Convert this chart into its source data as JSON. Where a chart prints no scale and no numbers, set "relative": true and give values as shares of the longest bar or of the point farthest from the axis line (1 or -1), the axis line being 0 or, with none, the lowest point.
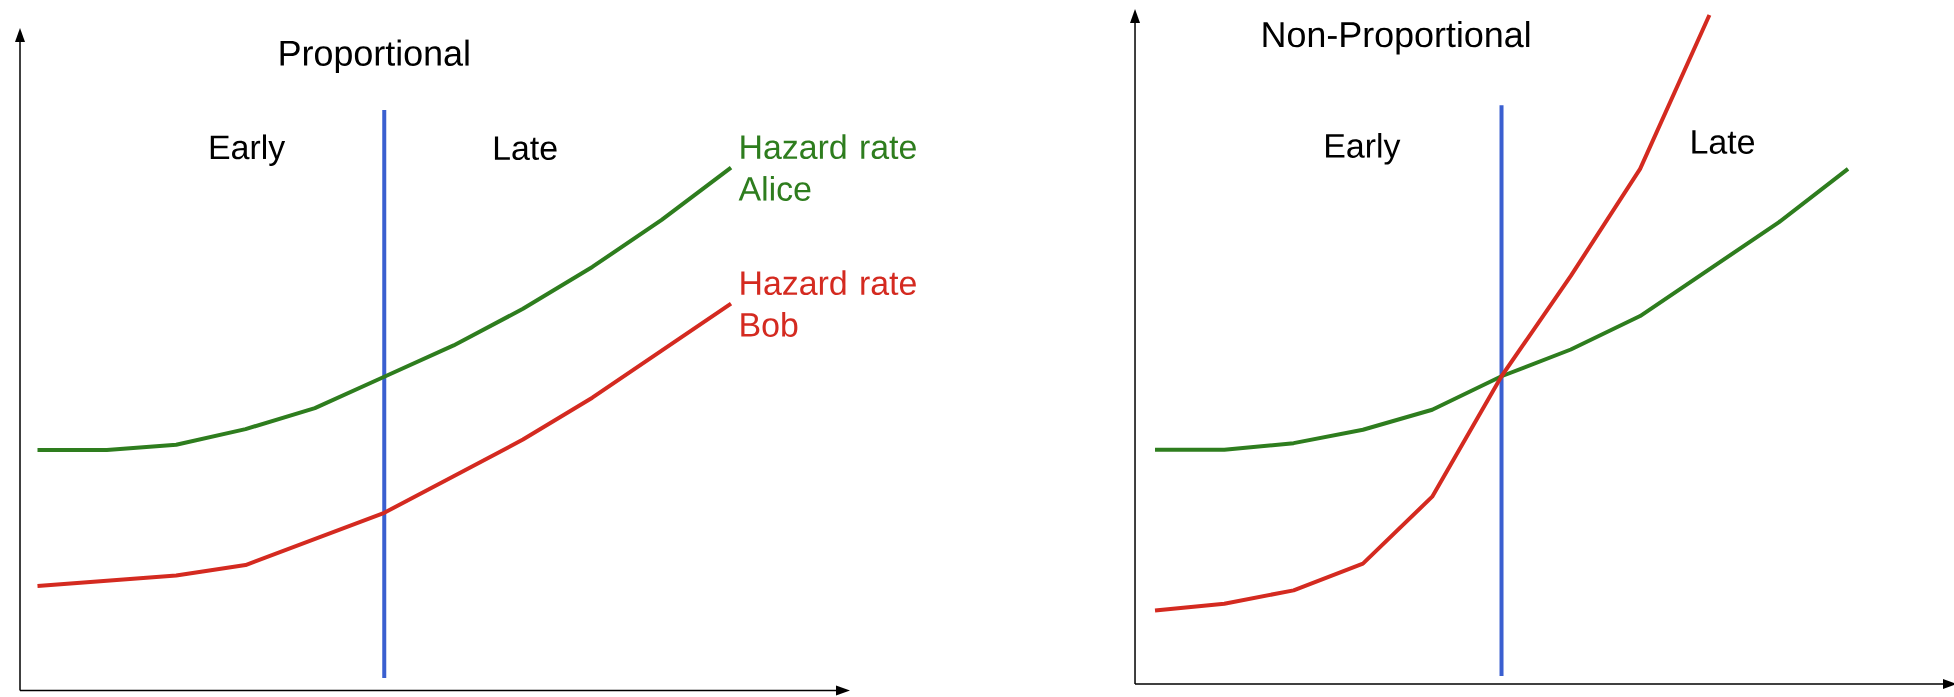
{
  "chart_data": [
    {
      "type": "line",
      "title": "Proportional",
      "relative": true,
      "categories": [
        null,
        null,
        null,
        null,
        null,
        null,
        null,
        null,
        null,
        null,
        null
      ],
      "series": [
        {
          "name": "Hazard rate Alice",
          "color": "#2e7d1e",
          "values": [
            0.46,
            0.46,
            0.47,
            0.5,
            0.54,
            0.6,
            0.66,
            0.73,
            0.81,
            0.9,
            1
          ]
        },
        {
          "name": "Hazard rate Bob",
          "color": "#d42a20",
          "values": [
            0.2,
            0.21,
            0.22,
            0.24,
            0.29,
            0.34,
            0.41,
            0.48,
            0.56,
            0.65,
            0.74
          ]
        }
      ],
      "annotations": [
        "Early",
        "Late"
      ]
    },
    {
      "type": "line",
      "title": "Non-Proportional",
      "relative": true,
      "categories": [
        null,
        null,
        null,
        null,
        null,
        null,
        null,
        null,
        null,
        null,
        null
      ],
      "series": [
        {
          "color": "#2e7d1e",
          "values": [
            0.35,
            0.35,
            0.36,
            0.38,
            0.41,
            0.46,
            0.5,
            0.55,
            0.62,
            0.69,
            0.77
          ]
        },
        {
          "color": "#d42a20",
          "values": [
            0.11,
            0.12,
            0.14,
            0.18,
            0.28,
            0.46,
            0.61,
            0.77,
            1,
            null,
            null
          ]
        }
      ],
      "annotations": [
        "Early",
        "Late"
      ]
    }
  ]
}
